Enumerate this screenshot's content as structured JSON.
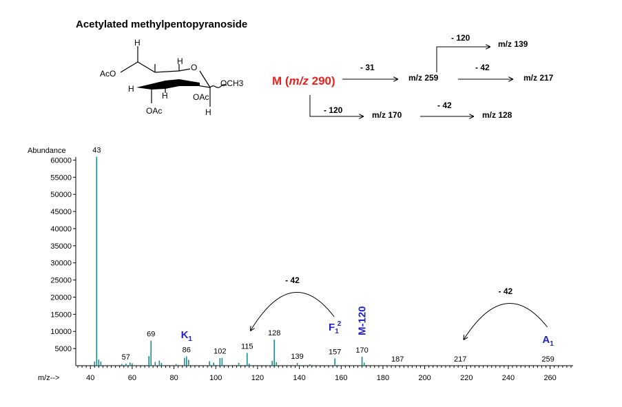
{
  "title": "Acetylated methylpentopyranoside",
  "structure": {
    "labels": [
      "H",
      "AcO",
      "H",
      "H",
      "H",
      "O",
      "OCH3",
      "OAc",
      "OAc",
      "H"
    ]
  },
  "fragmentation": {
    "parent": {
      "prefix": "M (",
      "mz_label": "m/z",
      "value": "290",
      "suffix": ")"
    },
    "labels": [
      "- 120",
      "m/z 139",
      "- 31",
      "m/z 259",
      "- 42",
      "m/z 217",
      "- 120",
      "m/z 170",
      "- 42",
      "m/z 128"
    ]
  },
  "colors": {
    "peak": "#1a8c8c",
    "annotation_blue": "#2121c8",
    "parent_red": "#e8231e"
  },
  "chart_data": {
    "type": "bar",
    "ylabel": "Abundance",
    "xlabel": "m/z-->",
    "xlim": [
      33,
      271
    ],
    "ylim": [
      0,
      62500
    ],
    "x_ticks": [
      40,
      60,
      80,
      100,
      120,
      140,
      160,
      180,
      200,
      220,
      240,
      260
    ],
    "y_ticks": [
      5000,
      10000,
      15000,
      20000,
      25000,
      30000,
      35000,
      40000,
      45000,
      50000,
      55000,
      60000
    ],
    "peaks": [
      {
        "mz": 42,
        "intensity": 1200
      },
      {
        "mz": 43,
        "intensity": 61000
      },
      {
        "mz": 44,
        "intensity": 1800
      },
      {
        "mz": 45,
        "intensity": 1200
      },
      {
        "mz": 55,
        "intensity": 500
      },
      {
        "mz": 57,
        "intensity": 600
      },
      {
        "mz": 59,
        "intensity": 900
      },
      {
        "mz": 60,
        "intensity": 700
      },
      {
        "mz": 68,
        "intensity": 2800
      },
      {
        "mz": 69,
        "intensity": 7300
      },
      {
        "mz": 71,
        "intensity": 1100
      },
      {
        "mz": 73,
        "intensity": 1500
      },
      {
        "mz": 74,
        "intensity": 800
      },
      {
        "mz": 81,
        "intensity": 500
      },
      {
        "mz": 85,
        "intensity": 2300
      },
      {
        "mz": 86,
        "intensity": 2700
      },
      {
        "mz": 87,
        "intensity": 1700
      },
      {
        "mz": 97,
        "intensity": 1300
      },
      {
        "mz": 99,
        "intensity": 900
      },
      {
        "mz": 102,
        "intensity": 2200
      },
      {
        "mz": 103,
        "intensity": 2300
      },
      {
        "mz": 111,
        "intensity": 800
      },
      {
        "mz": 115,
        "intensity": 3700
      },
      {
        "mz": 116,
        "intensity": 600
      },
      {
        "mz": 127,
        "intensity": 1400
      },
      {
        "mz": 128,
        "intensity": 7600
      },
      {
        "mz": 129,
        "intensity": 1000
      },
      {
        "mz": 139,
        "intensity": 800
      },
      {
        "mz": 145,
        "intensity": 400
      },
      {
        "mz": 157,
        "intensity": 2100
      },
      {
        "mz": 170,
        "intensity": 2600
      },
      {
        "mz": 171,
        "intensity": 900
      }
    ],
    "peak_labels": [
      {
        "mz": 43,
        "label": "43",
        "intensity": 61000
      },
      {
        "mz": 57,
        "label": "57",
        "intensity": 600
      },
      {
        "mz": 69,
        "label": "69",
        "intensity": 7300
      },
      {
        "mz": 86,
        "label": "86",
        "intensity": 2700
      },
      {
        "mz": 102,
        "label": "102",
        "intensity": 2300
      },
      {
        "mz": 115,
        "label": "115",
        "intensity": 3700
      },
      {
        "mz": 128,
        "label": "128",
        "intensity": 7600
      },
      {
        "mz": 139,
        "label": "139",
        "intensity": 800
      },
      {
        "mz": 157,
        "label": "157",
        "intensity": 2100
      },
      {
        "mz": 170,
        "label": "170",
        "intensity": 2600
      },
      {
        "mz": 187,
        "label": "187",
        "intensity": 0
      },
      {
        "mz": 217,
        "label": "217",
        "intensity": 0
      },
      {
        "mz": 259,
        "label": "259",
        "intensity": 0
      }
    ],
    "annotations": [
      {
        "mz": 86,
        "label": "K",
        "sub": "1",
        "sup": ""
      },
      {
        "mz": 157,
        "label": "F",
        "sub": "1",
        "sup": "2"
      },
      {
        "mz": 259,
        "label": "A",
        "sub": "1",
        "sup": ""
      }
    ],
    "rotated_annotation": {
      "mz": 170,
      "label": "M-120"
    },
    "loss_arcs": [
      {
        "from_mz": 157,
        "to_mz": 115,
        "label": "- 42"
      },
      {
        "from_mz": 259,
        "to_mz": 217,
        "label": "- 42"
      }
    ]
  }
}
